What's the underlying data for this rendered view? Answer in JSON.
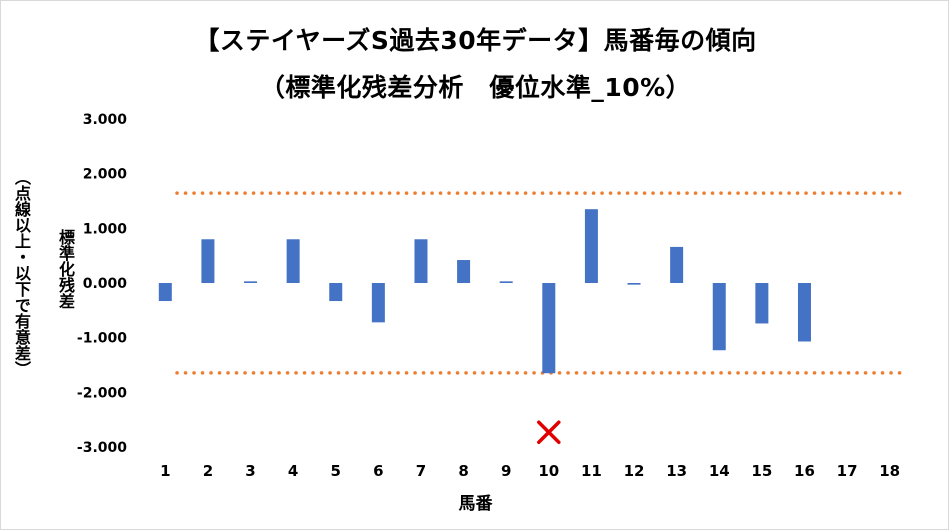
{
  "chart_data": {
    "type": "bar",
    "title_line1": "【ステイヤーズS過去30年データ】馬番毎の傾向",
    "title_line2": "（標準化残差分析　優位水準_10%）",
    "ylabel_main": "標準化残差",
    "ylabel_note": "（点線以上・以下で有意差）",
    "xlabel": "馬番",
    "categories": [
      "1",
      "2",
      "3",
      "4",
      "5",
      "6",
      "7",
      "8",
      "9",
      "10",
      "11",
      "12",
      "13",
      "14",
      "15",
      "16",
      "17",
      "18"
    ],
    "values": [
      -0.33,
      0.8,
      0.03,
      0.8,
      -0.33,
      -0.72,
      0.8,
      0.42,
      0.03,
      -1.65,
      1.35,
      -0.03,
      0.66,
      -1.23,
      -0.74,
      -1.07,
      null,
      null
    ],
    "ylim": [
      -3,
      3
    ],
    "yticks": [
      "3.000",
      "2.000",
      "1.000",
      "0.000",
      "-1.000",
      "-2.000",
      "-3.000"
    ],
    "ytick_values": [
      3,
      2,
      1,
      0,
      -1,
      -2,
      -3
    ],
    "threshold_upper": 1.645,
    "threshold_lower": -1.645,
    "marker": {
      "category": "10",
      "value": -2.73,
      "symbol": "✕"
    },
    "colors": {
      "bar": "#4472c4",
      "threshold": "#ed7d31",
      "marker": "#e00000"
    },
    "grid": false
  }
}
